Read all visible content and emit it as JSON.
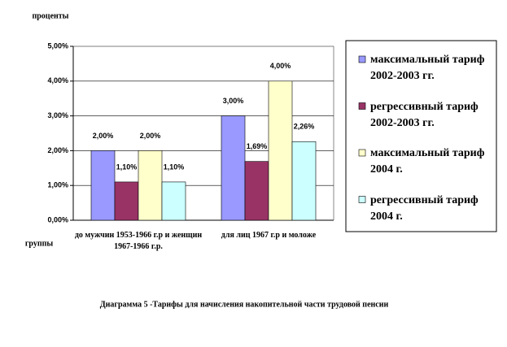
{
  "chart_data": {
    "type": "bar",
    "ylabel": "проценты",
    "xlabel": "группы",
    "caption": "Диаграмма 5 -Тарифы для начисления накопительной части трудовой пенсии",
    "categories": [
      "до мужчин 1953-1966 г.р и женщин 1967-1966 г.р.",
      "для лиц 1967 г.р и моложе"
    ],
    "series": [
      {
        "name": "максимальный тариф 2002-2003 гг.",
        "color": "#9999ff",
        "values": [
          2,
          3
        ],
        "value_labels": [
          "2,00%",
          "3,00%"
        ]
      },
      {
        "name": "регрессивный тариф 2002-2003 гг.",
        "color": "#993366",
        "values": [
          1.1,
          1.69
        ],
        "value_labels": [
          "1,10%",
          "1,69%"
        ]
      },
      {
        "name": "максимальный тариф 2004 г.",
        "color": "#ffffcc",
        "values": [
          2,
          4
        ],
        "value_labels": [
          "2,00%",
          "4,00%"
        ]
      },
      {
        "name": "регрессивный тариф 2004 г.",
        "color": "#ccffff",
        "values": [
          1.1,
          2.26
        ],
        "value_labels": [
          "1,10%",
          "2,26%"
        ]
      }
    ],
    "ylim": [
      0,
      5
    ],
    "yticks": [
      {
        "value": 0,
        "label": "0,00%"
      },
      {
        "value": 1,
        "label": "1,00%"
      },
      {
        "value": 2,
        "label": "2,00%"
      },
      {
        "value": 3,
        "label": "3,00%"
      },
      {
        "value": 4,
        "label": "4,00%"
      },
      {
        "value": 5,
        "label": "5,00%"
      }
    ],
    "grid": true,
    "legend": "right"
  }
}
